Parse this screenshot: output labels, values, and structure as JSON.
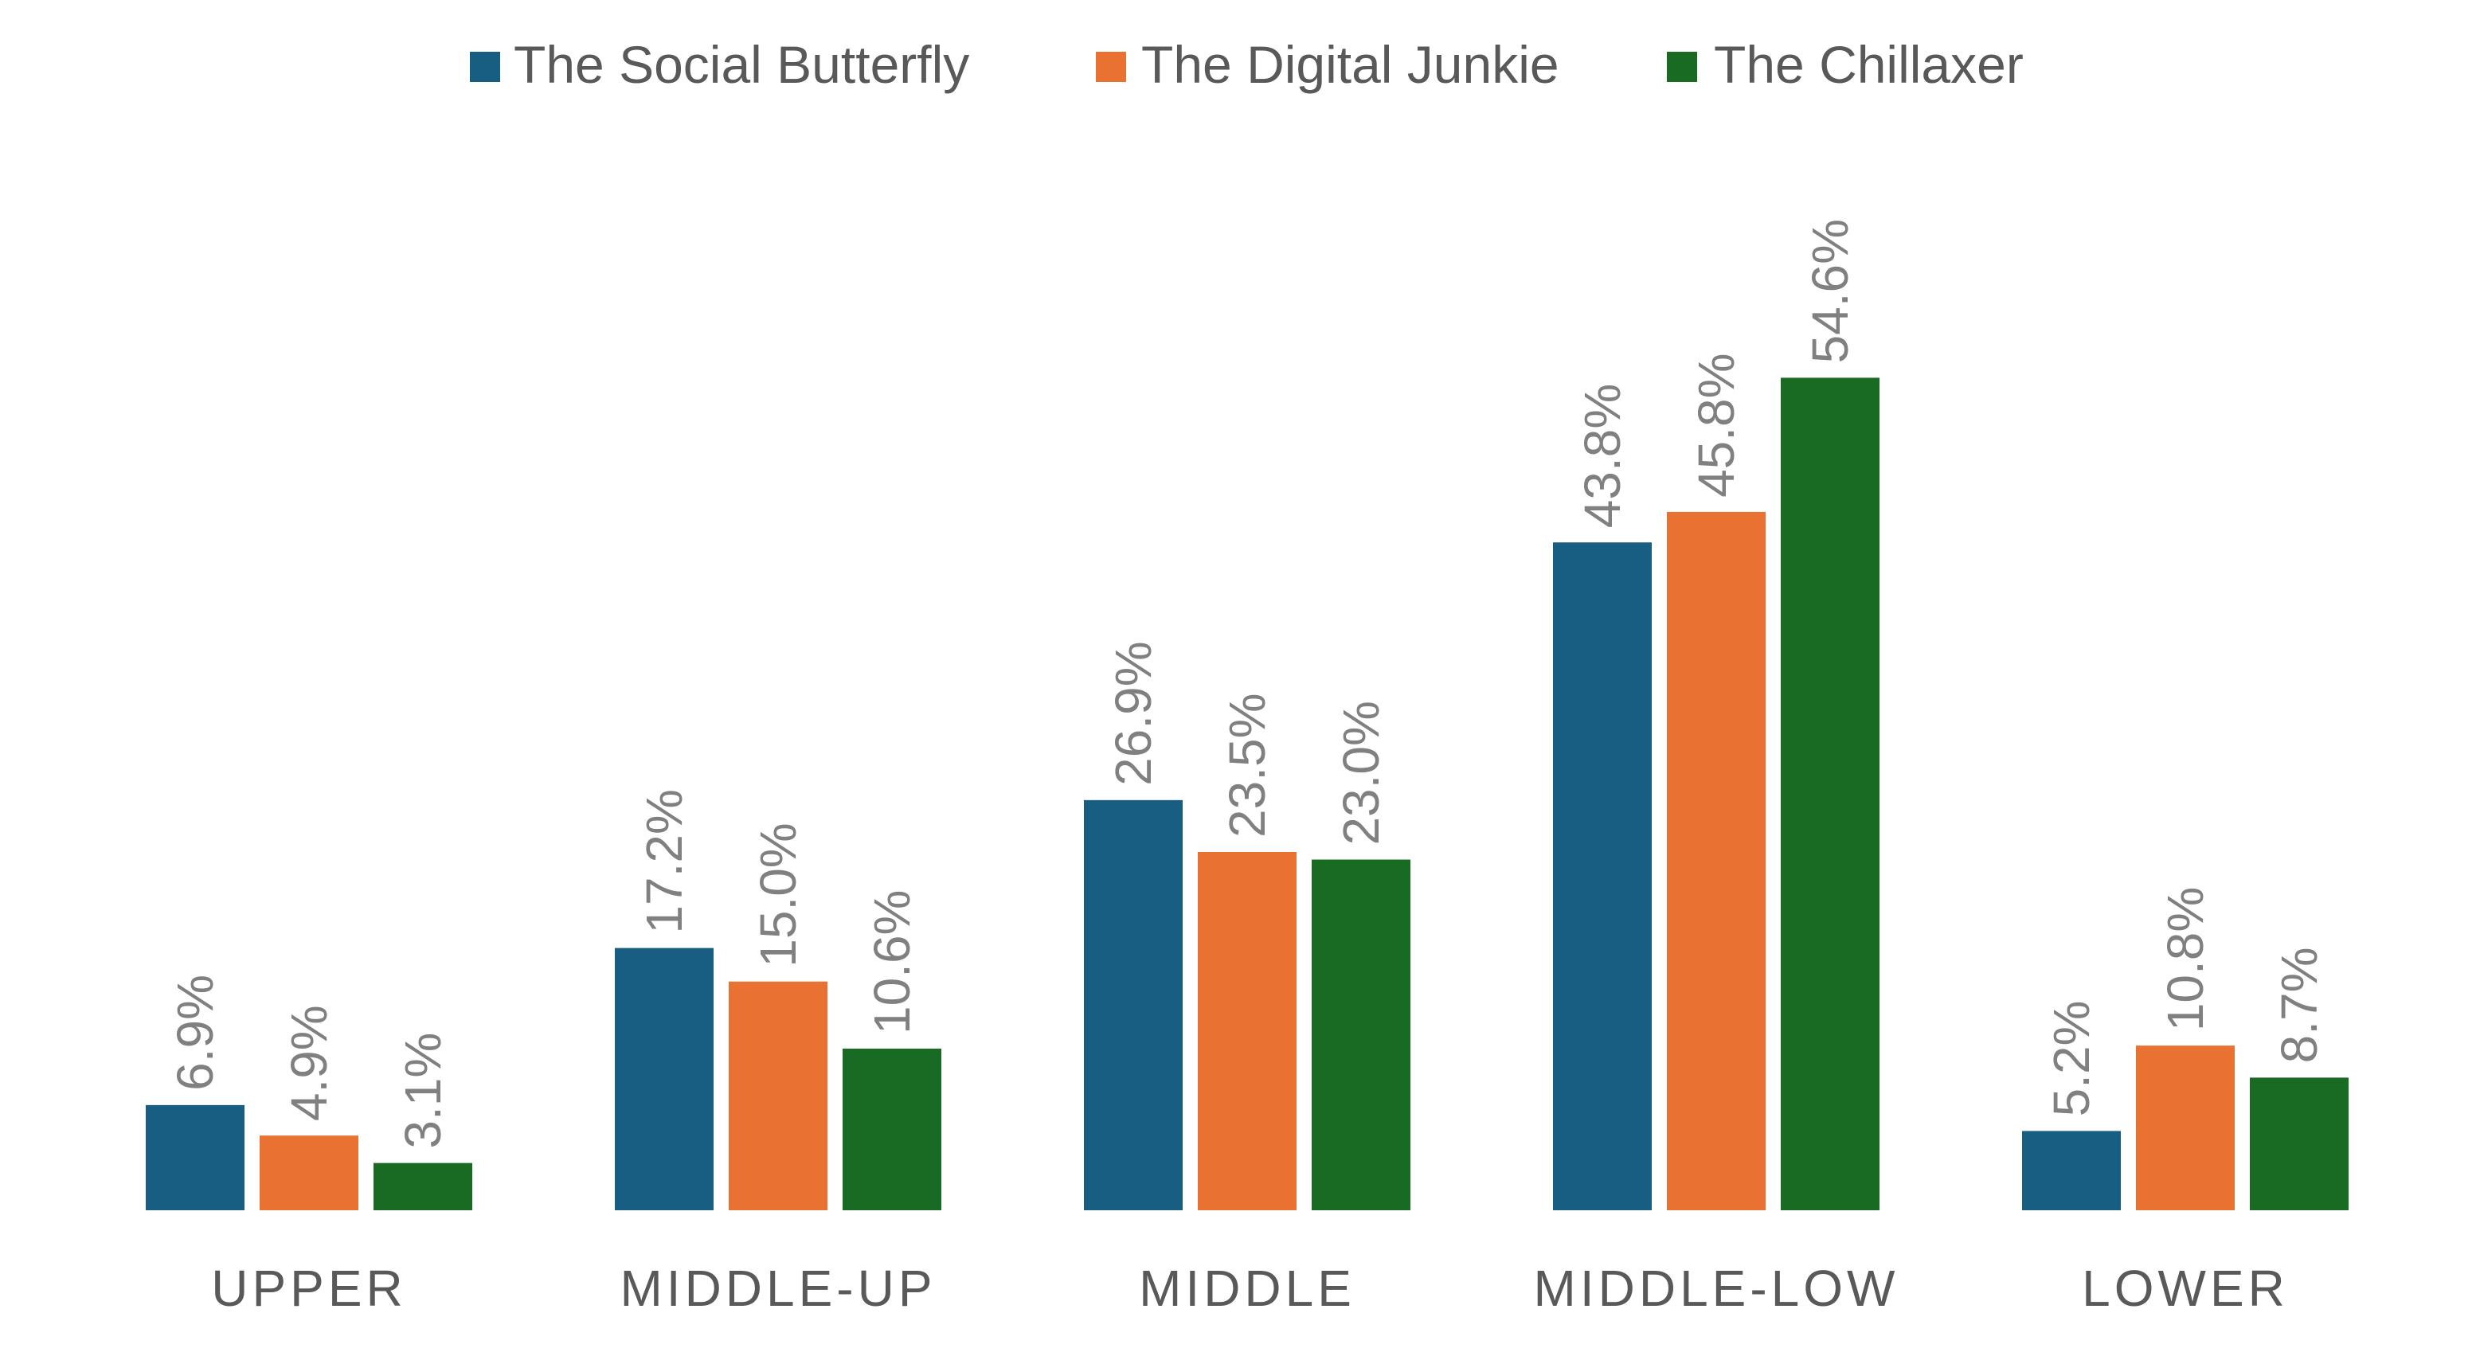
{
  "chart_data": {
    "type": "bar",
    "title": "",
    "xlabel": "",
    "ylabel": "",
    "ylim": [
      0,
      60
    ],
    "grid": false,
    "legend_position": "top",
    "categories": [
      "UPPER",
      "MIDDLE-UP",
      "MIDDLE",
      "MIDDLE-LOW",
      "LOWER"
    ],
    "series": [
      {
        "name": "The Social Butterfly",
        "color": "#175E82",
        "values": [
          6.9,
          17.2,
          26.9,
          43.8,
          5.2
        ],
        "labels": [
          "6.9%",
          "17.2%",
          "26.9%",
          "43.8%",
          "5.2%"
        ]
      },
      {
        "name": "The Digital Junkie",
        "color": "#E97132",
        "values": [
          4.9,
          15.0,
          23.5,
          45.8,
          10.8
        ],
        "labels": [
          "4.9%",
          "15.0%",
          "23.5%",
          "45.8%",
          "10.8%"
        ]
      },
      {
        "name": "The Chillaxer",
        "color": "#196B24",
        "values": [
          3.1,
          10.6,
          23.0,
          54.6,
          8.7
        ],
        "labels": [
          "3.1%",
          "10.6%",
          "23.0%",
          "54.6%",
          "8.7%"
        ]
      }
    ]
  }
}
